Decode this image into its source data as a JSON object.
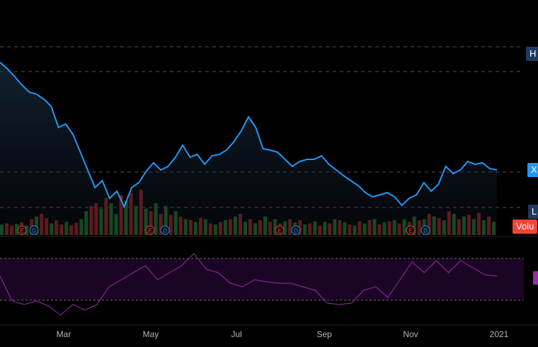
{
  "price_labels": {
    "high": "H",
    "current": "X",
    "low": "L",
    "volume": "Volu"
  },
  "event_markers": [
    {
      "label": "E",
      "type": "earnings"
    },
    {
      "label": "D",
      "type": "dividend"
    },
    {
      "label": "E",
      "type": "earnings"
    },
    {
      "label": "D",
      "type": "dividend"
    },
    {
      "label": "E",
      "type": "earnings"
    },
    {
      "label": "D",
      "type": "dividend"
    },
    {
      "label": "E",
      "type": "earnings"
    },
    {
      "label": "D",
      "type": "dividend"
    }
  ],
  "colors": {
    "line": "#2196f3",
    "up": "#1b5e20",
    "down": "#7f1d1d",
    "rsi": "#9c27b0",
    "volume_tag": "#f44336",
    "hl_tag": "#1e3a5f"
  },
  "chart_data": {
    "type": "line",
    "x_tick_labels": [
      "Mar",
      "May",
      "Jul",
      "Sep",
      "Nov",
      "2021"
    ],
    "price_series": [
      88,
      97,
      108,
      120,
      130,
      133,
      140,
      150,
      180,
      175,
      190,
      215,
      240,
      265,
      255,
      280,
      270,
      292,
      265,
      258,
      242,
      230,
      240,
      235,
      222,
      205,
      222,
      218,
      232,
      220,
      218,
      212,
      200,
      185,
      165,
      180,
      210,
      212,
      215,
      225,
      235,
      228,
      225,
      225,
      220,
      232,
      240,
      248,
      255,
      262,
      272,
      278,
      275,
      272,
      278,
      290,
      280,
      275,
      258,
      270,
      260,
      235,
      245,
      240,
      228,
      232,
      230,
      238,
      240
    ],
    "rsi_series": [
      390,
      425,
      430,
      425,
      432,
      445,
      430,
      438,
      430,
      405,
      395,
      385,
      375,
      395,
      385,
      375,
      358,
      380,
      385,
      400,
      405,
      395,
      398,
      400,
      400,
      405,
      410,
      428,
      430,
      428,
      410,
      405,
      420,
      395,
      370,
      385,
      368,
      385,
      368,
      378,
      388,
      390
    ],
    "volume": [
      20,
      -22,
      -18,
      21,
      -24,
      18,
      -30,
      35,
      -40,
      -32,
      22,
      -28,
      -20,
      25,
      -19,
      -23,
      30,
      45,
      -55,
      -60,
      50,
      -70,
      60,
      40,
      -75,
      65,
      -80,
      55,
      -85,
      50,
      -45,
      60,
      -40,
      55,
      -38,
      45,
      -35,
      30,
      -28,
      25,
      -32,
      30,
      -22,
      20,
      -25,
      28,
      -30,
      35,
      -40,
      25,
      -30,
      22,
      -28,
      35,
      -25,
      30,
      -22,
      26,
      -30,
      24,
      -28,
      20,
      -22,
      26,
      -18,
      25,
      -22,
      30,
      -28,
      24,
      -20,
      18,
      -26,
      22,
      -28,
      30,
      -20,
      24,
      -26,
      28,
      -22,
      30,
      -25,
      35,
      -28,
      30,
      -40,
      35,
      -32,
      28,
      -45,
      40,
      -30,
      35,
      -38,
      30,
      -42,
      28,
      -35,
      25
    ]
  }
}
